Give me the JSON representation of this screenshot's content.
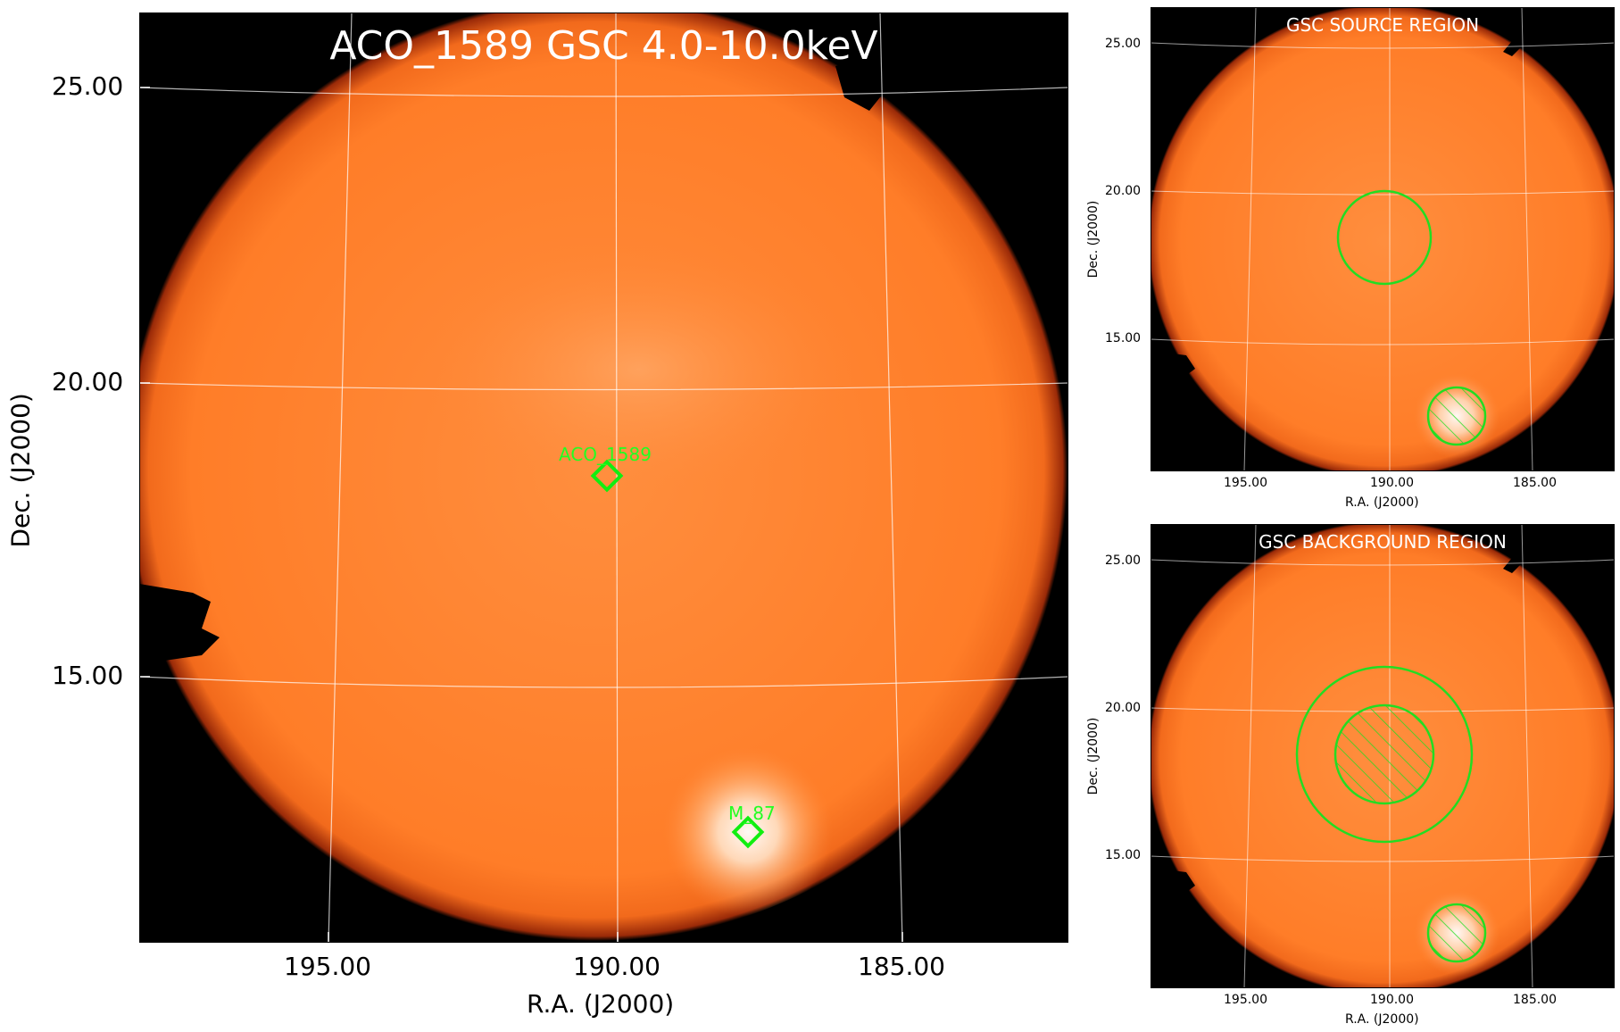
{
  "main_panel": {
    "title": "ACO_1589 GSC 4.0-10.0keV",
    "xlabel": "R.A. (J2000)",
    "ylabel": "Dec. (J2000)",
    "xticks": [
      "195.00",
      "190.00",
      "185.00"
    ],
    "yticks": [
      "25.00",
      "20.00",
      "15.00"
    ],
    "sources": [
      {
        "name": "ACO_1589"
      },
      {
        "name": "M_87"
      }
    ]
  },
  "source_panel": {
    "title": "GSC SOURCE REGION",
    "xlabel": "R.A. (J2000)",
    "ylabel": "Dec. (J2000)",
    "xticks": [
      "195.00",
      "190.00",
      "185.00"
    ],
    "yticks": [
      "25.00",
      "20.00",
      "15.00"
    ]
  },
  "background_panel": {
    "title": "GSC BACKGROUND REGION",
    "xlabel": "R.A. (J2000)",
    "ylabel": "Dec. (J2000)",
    "xticks": [
      "195.00",
      "190.00",
      "185.00"
    ],
    "yticks": [
      "25.00",
      "20.00",
      "15.00"
    ]
  },
  "colors": {
    "disk": "#ff7f2a",
    "bright": "#fff2e0",
    "region": "#22dd22",
    "grid": "#ffffff",
    "background": "#000000"
  }
}
